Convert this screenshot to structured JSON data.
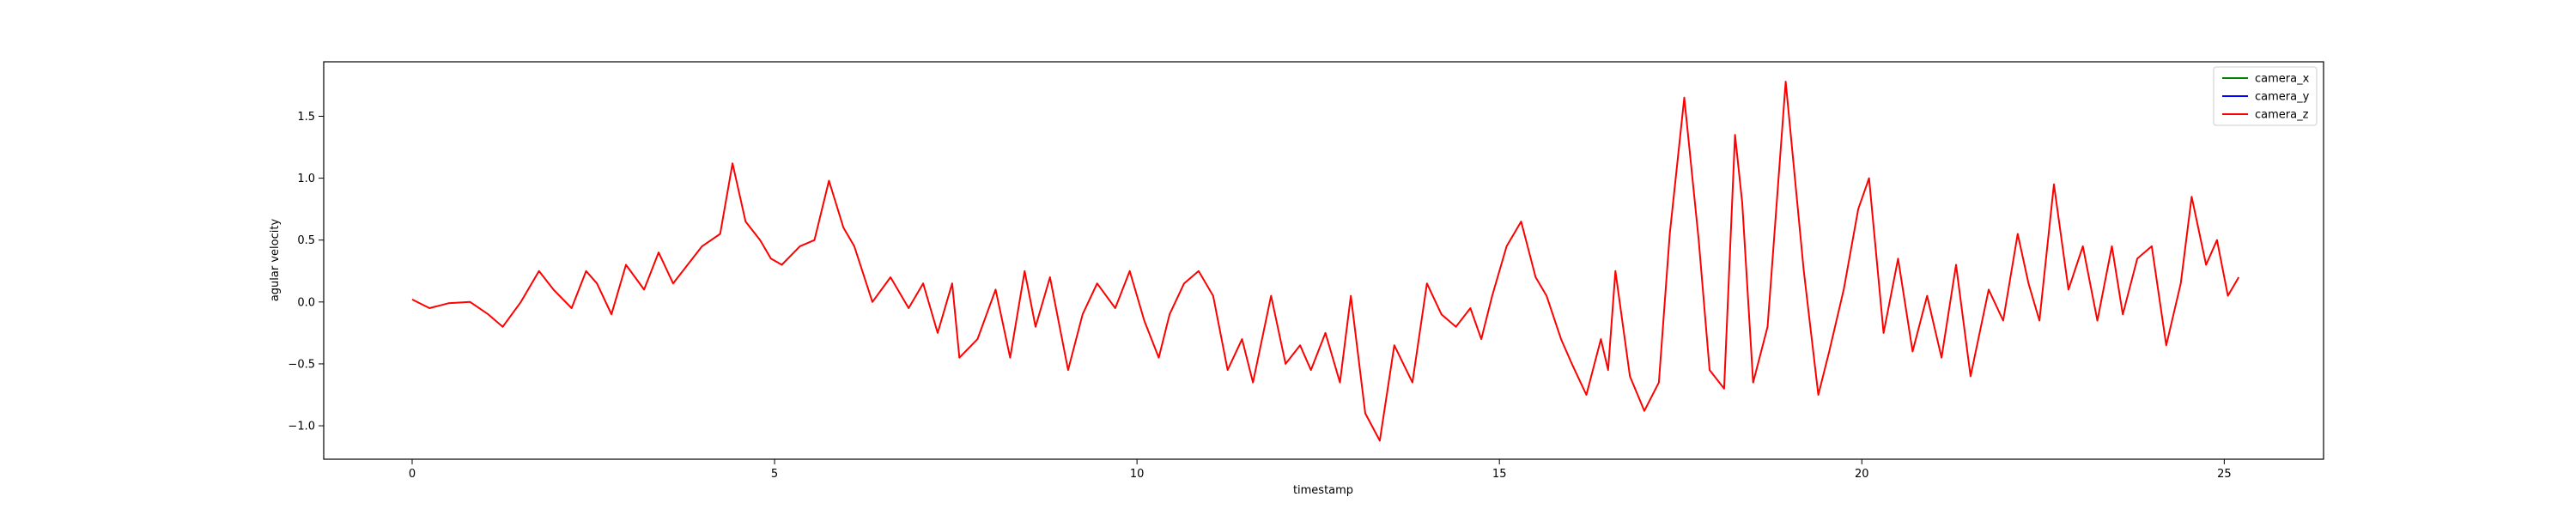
{
  "chart_data": {
    "type": "line",
    "title": "",
    "xlabel": "timestamp",
    "ylabel": "agular velocity",
    "xlim": [
      -1.22,
      26.37
    ],
    "ylim": [
      -1.27,
      1.94
    ],
    "x_ticks": [
      0,
      5,
      10,
      15,
      20,
      25
    ],
    "y_ticks": [
      -1.0,
      -0.5,
      0.0,
      0.5,
      1.0,
      1.5
    ],
    "grid": false,
    "legend_position": "top-right",
    "series": [
      {
        "name": "camera_x",
        "color": "#008000",
        "x": [],
        "y": []
      },
      {
        "name": "camera_y",
        "color": "#0000ff",
        "x": [],
        "y": []
      },
      {
        "name": "camera_z",
        "color": "#ff0000",
        "x": [
          0.0,
          0.24,
          0.5,
          0.8,
          1.05,
          1.25,
          1.5,
          1.75,
          1.95,
          2.2,
          2.4,
          2.55,
          2.75,
          2.95,
          3.2,
          3.4,
          3.6,
          3.8,
          4.0,
          4.25,
          4.42,
          4.6,
          4.8,
          4.95,
          5.1,
          5.35,
          5.55,
          5.75,
          5.95,
          6.1,
          6.35,
          6.6,
          6.85,
          7.05,
          7.25,
          7.45,
          7.55,
          7.8,
          8.05,
          8.25,
          8.45,
          8.6,
          8.8,
          9.05,
          9.25,
          9.45,
          9.7,
          9.9,
          10.1,
          10.3,
          10.45,
          10.65,
          10.85,
          11.05,
          11.25,
          11.45,
          11.6,
          11.85,
          12.05,
          12.25,
          12.4,
          12.6,
          12.8,
          12.95,
          13.15,
          13.35,
          13.55,
          13.8,
          14.0,
          14.2,
          14.4,
          14.6,
          14.75,
          14.9,
          15.1,
          15.3,
          15.5,
          15.65,
          15.85,
          16.0,
          16.2,
          16.4,
          16.5,
          16.6,
          16.8,
          17.0,
          17.2,
          17.35,
          17.55,
          17.75,
          17.9,
          18.1,
          18.25,
          18.35,
          18.5,
          18.7,
          18.95,
          19.2,
          19.4,
          19.55,
          19.75,
          19.95,
          20.1,
          20.3,
          20.5,
          20.7,
          20.9,
          21.1,
          21.3,
          21.5,
          21.75,
          21.95,
          22.15,
          22.3,
          22.45,
          22.65,
          22.85,
          23.05,
          23.25,
          23.45,
          23.6,
          23.8,
          24.0,
          24.2,
          24.4,
          24.55,
          24.75,
          24.9,
          25.05,
          25.2
        ],
        "y": [
          0.02,
          -0.05,
          -0.01,
          0.0,
          -0.1,
          -0.2,
          0.0,
          0.25,
          0.1,
          -0.05,
          0.25,
          0.15,
          -0.1,
          0.3,
          0.1,
          0.4,
          0.15,
          0.3,
          0.45,
          0.55,
          1.12,
          0.65,
          0.5,
          0.35,
          0.3,
          0.45,
          0.5,
          0.98,
          0.6,
          0.45,
          0.0,
          0.2,
          -0.05,
          0.15,
          -0.25,
          0.15,
          -0.45,
          -0.3,
          0.1,
          -0.45,
          0.25,
          -0.2,
          0.2,
          -0.55,
          -0.1,
          0.15,
          -0.05,
          0.25,
          -0.15,
          -0.45,
          -0.1,
          0.15,
          0.25,
          0.05,
          -0.55,
          -0.3,
          -0.65,
          0.05,
          -0.5,
          -0.35,
          -0.55,
          -0.25,
          -0.65,
          0.05,
          -0.9,
          -1.12,
          -0.35,
          -0.65,
          0.15,
          -0.1,
          -0.2,
          -0.05,
          -0.3,
          0.05,
          0.45,
          0.65,
          0.2,
          0.05,
          -0.3,
          -0.5,
          -0.75,
          -0.3,
          -0.55,
          0.25,
          -0.6,
          -0.88,
          -0.65,
          0.55,
          1.65,
          0.5,
          -0.55,
          -0.7,
          1.35,
          0.8,
          -0.65,
          -0.2,
          1.78,
          0.25,
          -0.75,
          -0.4,
          0.1,
          0.75,
          1.0,
          -0.25,
          0.35,
          -0.4,
          0.05,
          -0.45,
          0.3,
          -0.6,
          0.1,
          -0.15,
          0.55,
          0.15,
          -0.15,
          0.95,
          0.1,
          0.45,
          -0.15,
          0.45,
          -0.1,
          0.35,
          0.45,
          -0.35,
          0.15,
          0.85,
          0.3,
          0.5,
          0.05,
          0.2
        ]
      }
    ]
  }
}
